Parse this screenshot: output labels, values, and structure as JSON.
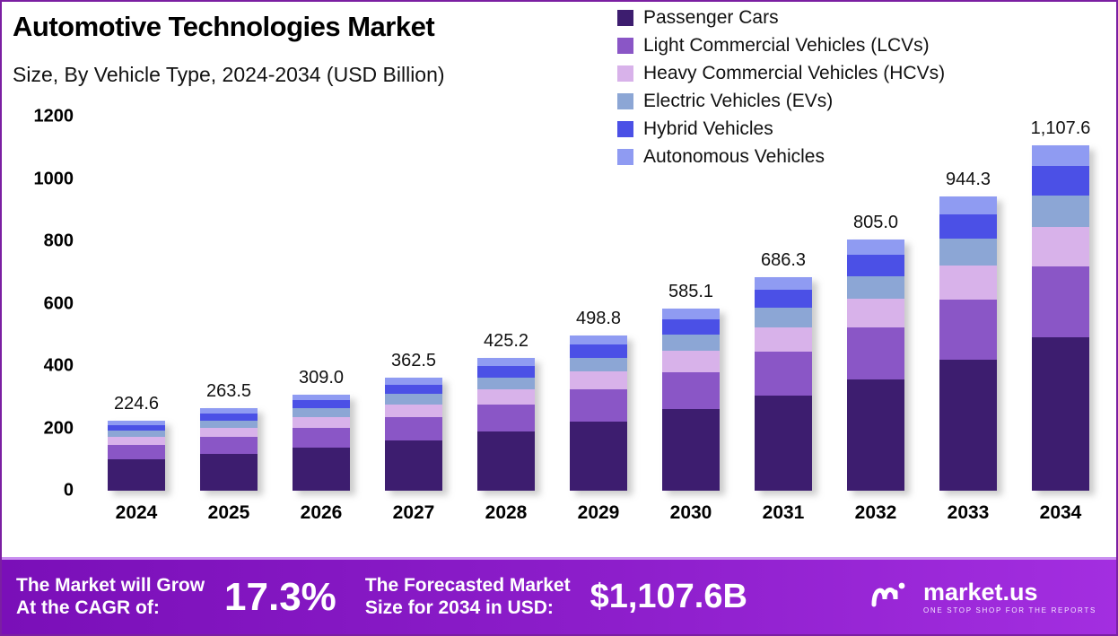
{
  "header": {
    "title": "Automotive Technologies Market",
    "subtitle": "Size, By Vehicle Type, 2024-2034 (USD Billion)"
  },
  "chart_data": {
    "type": "bar",
    "stacked": true,
    "title": "Automotive Technologies Market Size, By Vehicle Type, 2024-2034 (USD Billion)",
    "categories": [
      "2024",
      "2025",
      "2026",
      "2027",
      "2028",
      "2029",
      "2030",
      "2031",
      "2032",
      "2033",
      "2034"
    ],
    "series": [
      {
        "name": "Passenger Cars",
        "color": "#3d1d6f",
        "values": [
          99.9,
          117.3,
          137.5,
          161.3,
          189.2,
          222.0,
          260.4,
          305.4,
          358.2,
          420.2,
          492.9
        ]
      },
      {
        "name": "Light Commercial Vehicles (LCVs)",
        "color": "#8a56c6",
        "values": [
          46.0,
          54.0,
          63.3,
          74.3,
          87.2,
          102.3,
          119.9,
          140.7,
          165.0,
          193.6,
          227.1
        ]
      },
      {
        "name": "Heavy Commercial Vehicles (HCVs)",
        "color": "#d8b2ea",
        "values": [
          25.8,
          30.3,
          35.5,
          41.7,
          48.9,
          57.4,
          67.3,
          78.9,
          92.6,
          108.6,
          127.4
        ]
      },
      {
        "name": "Electric Vehicles (EVs)",
        "color": "#8ca6d5",
        "values": [
          20.2,
          23.7,
          27.8,
          32.6,
          38.3,
          44.9,
          52.7,
          61.8,
          72.5,
          85.0,
          99.7
        ]
      },
      {
        "name": "Hybrid Vehicles",
        "color": "#4b50e6",
        "values": [
          19.1,
          22.4,
          26.3,
          30.8,
          36.1,
          42.4,
          49.7,
          58.3,
          68.4,
          80.3,
          94.1
        ]
      },
      {
        "name": "Autonomous Vehicles",
        "color": "#8f9bf2",
        "values": [
          13.5,
          15.8,
          18.5,
          21.8,
          25.5,
          29.9,
          35.1,
          41.2,
          48.3,
          56.7,
          66.5
        ]
      }
    ],
    "totals": [
      224.6,
      263.5,
      309.0,
      362.5,
      425.2,
      498.8,
      585.1,
      686.3,
      805.0,
      944.3,
      1107.6
    ],
    "total_labels": [
      "224.6",
      "263.5",
      "309.0",
      "362.5",
      "425.2",
      "498.8",
      "585.1",
      "686.3",
      "805.0",
      "944.3",
      "1,107.6"
    ],
    "xlabel": "",
    "ylabel": "",
    "ylim": [
      0,
      1200
    ],
    "yticks": [
      0,
      200,
      400,
      600,
      800,
      1000,
      1200
    ],
    "grid": false,
    "legend_position": "top-right"
  },
  "footer": {
    "cagr_label_line1": "The Market will Grow",
    "cagr_label_line2": "At the CAGR of:",
    "cagr_value": "17.3%",
    "forecast_label_line1": "The Forecasted Market",
    "forecast_label_line2": "Size for 2034 in USD:",
    "forecast_value": "$1,107.6B",
    "brand": "market.us",
    "brand_tagline": "ONE STOP SHOP FOR THE REPORTS"
  }
}
